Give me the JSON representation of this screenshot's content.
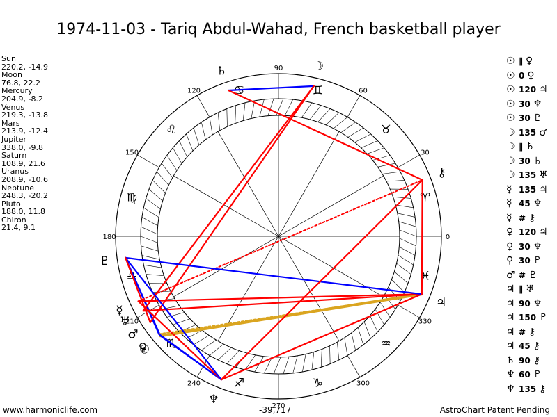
{
  "title": "1974-11-03 - Tariq Abdul-Wahad, French basketball player",
  "planet_positions": [
    {
      "name": "Sun",
      "value": "220.2, -14.9"
    },
    {
      "name": "Moon",
      "value": "76.8, 22.2"
    },
    {
      "name": "Mercury",
      "value": "204.9, -8.2"
    },
    {
      "name": "Venus",
      "value": "219.3, -13.8"
    },
    {
      "name": "Mars",
      "value": "213.9, -12.4"
    },
    {
      "name": "Jupiter",
      "value": "338.0, -9.8"
    },
    {
      "name": "Saturn",
      "value": "108.9, 21.6"
    },
    {
      "name": "Uranus",
      "value": "208.9, -10.6"
    },
    {
      "name": "Neptune",
      "value": "248.3, -20.2"
    },
    {
      "name": "Pluto",
      "value": "188.0, 11.8"
    },
    {
      "name": "Chiron",
      "value": "21.4, 9.1"
    }
  ],
  "aspects": [
    {
      "p1": "☉",
      "aspect": "∥",
      "p2": "♀"
    },
    {
      "p1": "☉",
      "aspect": "0",
      "p2": "♀"
    },
    {
      "p1": "☉",
      "aspect": "120",
      "p2": "♃"
    },
    {
      "p1": "☉",
      "aspect": "30",
      "p2": "♆"
    },
    {
      "p1": "☉",
      "aspect": "30",
      "p2": "♇"
    },
    {
      "p1": "☽",
      "aspect": "135",
      "p2": "♂"
    },
    {
      "p1": "☽",
      "aspect": "∥",
      "p2": "♄"
    },
    {
      "p1": "☽",
      "aspect": "30",
      "p2": "♄"
    },
    {
      "p1": "☽",
      "aspect": "135",
      "p2": "♅"
    },
    {
      "p1": "☿",
      "aspect": "135",
      "p2": "♃"
    },
    {
      "p1": "☿",
      "aspect": "45",
      "p2": "♆"
    },
    {
      "p1": "☿",
      "aspect": "#",
      "p2": "⚷"
    },
    {
      "p1": "♀",
      "aspect": "120",
      "p2": "♃"
    },
    {
      "p1": "♀",
      "aspect": "30",
      "p2": "♆"
    },
    {
      "p1": "♀",
      "aspect": "30",
      "p2": "♇"
    },
    {
      "p1": "♂",
      "aspect": "#",
      "p2": "♇"
    },
    {
      "p1": "♃",
      "aspect": "∥",
      "p2": "♅"
    },
    {
      "p1": "♃",
      "aspect": "90",
      "p2": "♆"
    },
    {
      "p1": "♃",
      "aspect": "150",
      "p2": "♇"
    },
    {
      "p1": "♃",
      "aspect": "#",
      "p2": "⚷"
    },
    {
      "p1": "♃",
      "aspect": "45",
      "p2": "⚷"
    },
    {
      "p1": "♄",
      "aspect": "90",
      "p2": "⚷"
    },
    {
      "p1": "♆",
      "aspect": "60",
      "p2": "♇"
    },
    {
      "p1": "♆",
      "aspect": "135",
      "p2": "⚷"
    }
  ],
  "degree_labels": [
    {
      "deg": 0,
      "text": "0"
    },
    {
      "deg": 30,
      "text": "30"
    },
    {
      "deg": 60,
      "text": "60"
    },
    {
      "deg": 90,
      "text": "90"
    },
    {
      "deg": 120,
      "text": "120"
    },
    {
      "deg": 150,
      "text": "150"
    },
    {
      "deg": 180,
      "text": "180"
    },
    {
      "deg": 210,
      "text": "210"
    },
    {
      "deg": 240,
      "text": "240"
    },
    {
      "deg": 270,
      "text": "270"
    },
    {
      "deg": 300,
      "text": "300"
    },
    {
      "deg": 330,
      "text": "330"
    }
  ],
  "zodiac_signs": [
    {
      "deg": 15,
      "glyph": "♈"
    },
    {
      "deg": 45,
      "glyph": "♉"
    },
    {
      "deg": 75,
      "glyph": "♊"
    },
    {
      "deg": 105,
      "glyph": "♋"
    },
    {
      "deg": 135,
      "glyph": "♌"
    },
    {
      "deg": 165,
      "glyph": "♍"
    },
    {
      "deg": 195,
      "glyph": "♎"
    },
    {
      "deg": 225,
      "glyph": "♏"
    },
    {
      "deg": 255,
      "glyph": "♐"
    },
    {
      "deg": 285,
      "glyph": "♑"
    },
    {
      "deg": 315,
      "glyph": "♒"
    },
    {
      "deg": 345,
      "glyph": "♓"
    }
  ],
  "planets": [
    {
      "key": "sun",
      "glyph": "☉",
      "lon": 220.2
    },
    {
      "key": "moon",
      "glyph": "☽",
      "lon": 76.8
    },
    {
      "key": "mercury",
      "glyph": "☿",
      "lon": 204.9
    },
    {
      "key": "venus",
      "glyph": "♀",
      "lon": 219.3
    },
    {
      "key": "mars",
      "glyph": "♂",
      "lon": 213.9
    },
    {
      "key": "jupiter",
      "glyph": "♃",
      "lon": 338.0
    },
    {
      "key": "saturn",
      "glyph": "♄",
      "lon": 108.9
    },
    {
      "key": "uranus",
      "glyph": "♅",
      "lon": 208.9
    },
    {
      "key": "neptune",
      "glyph": "♆",
      "lon": 248.3
    },
    {
      "key": "pluto",
      "glyph": "♇",
      "lon": 188.0
    },
    {
      "key": "chiron",
      "glyph": "⚷",
      "lon": 21.4
    }
  ],
  "chart_lines": [
    {
      "a": "sun",
      "b": "venus",
      "style": "red"
    },
    {
      "a": "sun",
      "b": "jupiter",
      "style": "gold-thick"
    },
    {
      "a": "sun",
      "b": "neptune",
      "style": "blue"
    },
    {
      "a": "sun",
      "b": "pluto",
      "style": "blue"
    },
    {
      "a": "venus",
      "b": "jupiter",
      "style": "gold-dotted"
    },
    {
      "a": "venus",
      "b": "neptune",
      "style": "blue"
    },
    {
      "a": "venus",
      "b": "pluto",
      "style": "blue"
    },
    {
      "a": "moon",
      "b": "saturn",
      "style": "blue"
    },
    {
      "a": "moon",
      "b": "mars",
      "style": "red"
    },
    {
      "a": "moon",
      "b": "uranus",
      "style": "red"
    },
    {
      "a": "mercury",
      "b": "jupiter",
      "style": "red"
    },
    {
      "a": "mercury",
      "b": "neptune",
      "style": "red"
    },
    {
      "a": "mercury",
      "b": "chiron",
      "style": "red-dotted"
    },
    {
      "a": "jupiter",
      "b": "uranus",
      "style": "red"
    },
    {
      "a": "jupiter",
      "b": "neptune",
      "style": "red"
    },
    {
      "a": "jupiter",
      "b": "pluto",
      "style": "blue"
    },
    {
      "a": "jupiter",
      "b": "chiron",
      "style": "red"
    },
    {
      "a": "saturn",
      "b": "chiron",
      "style": "red"
    },
    {
      "a": "neptune",
      "b": "pluto",
      "style": "blue"
    },
    {
      "a": "neptune",
      "b": "chiron",
      "style": "red"
    },
    {
      "a": "mars",
      "b": "pluto",
      "style": "red"
    }
  ],
  "colors": {
    "red": "#ff0000",
    "blue": "#0000ff",
    "gold": "#daa520",
    "ring": "#000000"
  },
  "footer": {
    "left": "www.harmoniclife.com",
    "center": "-39,717",
    "right": "AstroChart Patent Pending"
  }
}
